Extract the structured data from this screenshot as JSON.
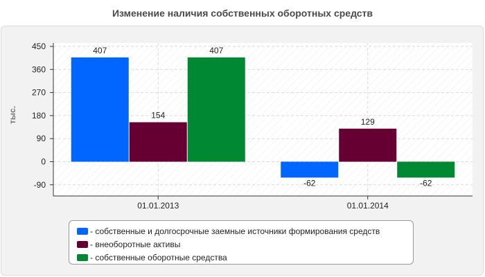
{
  "chart_data": {
    "type": "bar",
    "title": "Изменение наличия собственных оборотных средств",
    "ylabel": "тыс.",
    "xlabel": "",
    "categories": [
      "01.01.2013",
      "01.01.2014"
    ],
    "series": [
      {
        "name": "- собственные и долгосрочные заемные источники формирования средств",
        "color": "#0066ff",
        "values": [
          407,
          -62
        ]
      },
      {
        "name": "- внеоборотные активы",
        "color": "#660033",
        "values": [
          154,
          129
        ]
      },
      {
        "name": "- собственные оборотные средства",
        "color": "#008833",
        "values": [
          407,
          -62
        ]
      }
    ],
    "yticks": [
      450,
      360,
      270,
      180,
      90,
      0,
      -90
    ],
    "ylim": [
      -135,
      450
    ],
    "grid": true,
    "legend_position": "bottom"
  }
}
